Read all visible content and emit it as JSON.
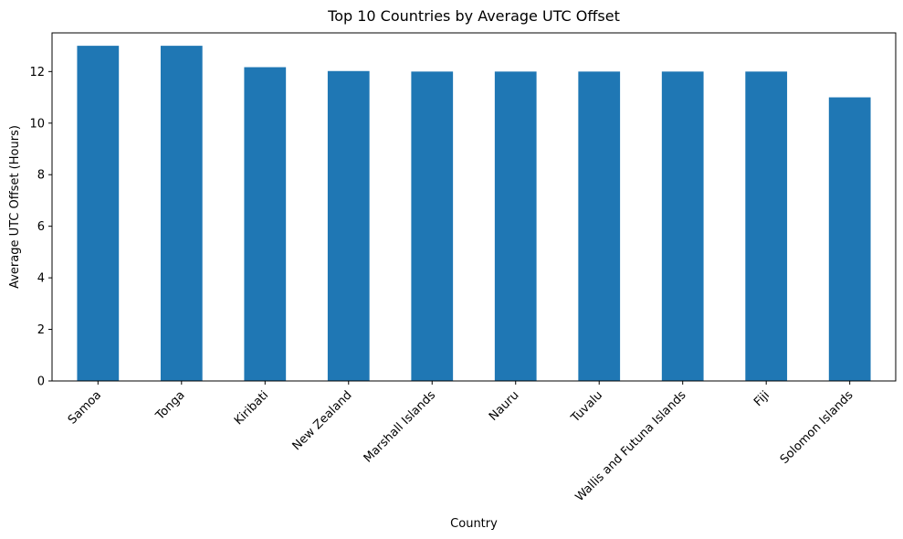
{
  "chart_data": {
    "type": "bar",
    "title": "Top 10 Countries by Average UTC Offset",
    "xlabel": "Country",
    "ylabel": "Average UTC Offset (Hours)",
    "categories": [
      "Samoa",
      "Tonga",
      "Kiribati",
      "New Zealand",
      "Marshall Islands",
      "Nauru",
      "Tuvalu",
      "Wallis and Futuna Islands",
      "Fiji",
      "Solomon Islands"
    ],
    "values": [
      13,
      13,
      12.17,
      12.02,
      12,
      12,
      12,
      12,
      12,
      11
    ],
    "ylim": [
      0,
      13.5
    ],
    "yticks": [
      0,
      2,
      4,
      6,
      8,
      10,
      12
    ],
    "grid": false,
    "legend": "none",
    "bar_color": "#1f77b4"
  }
}
